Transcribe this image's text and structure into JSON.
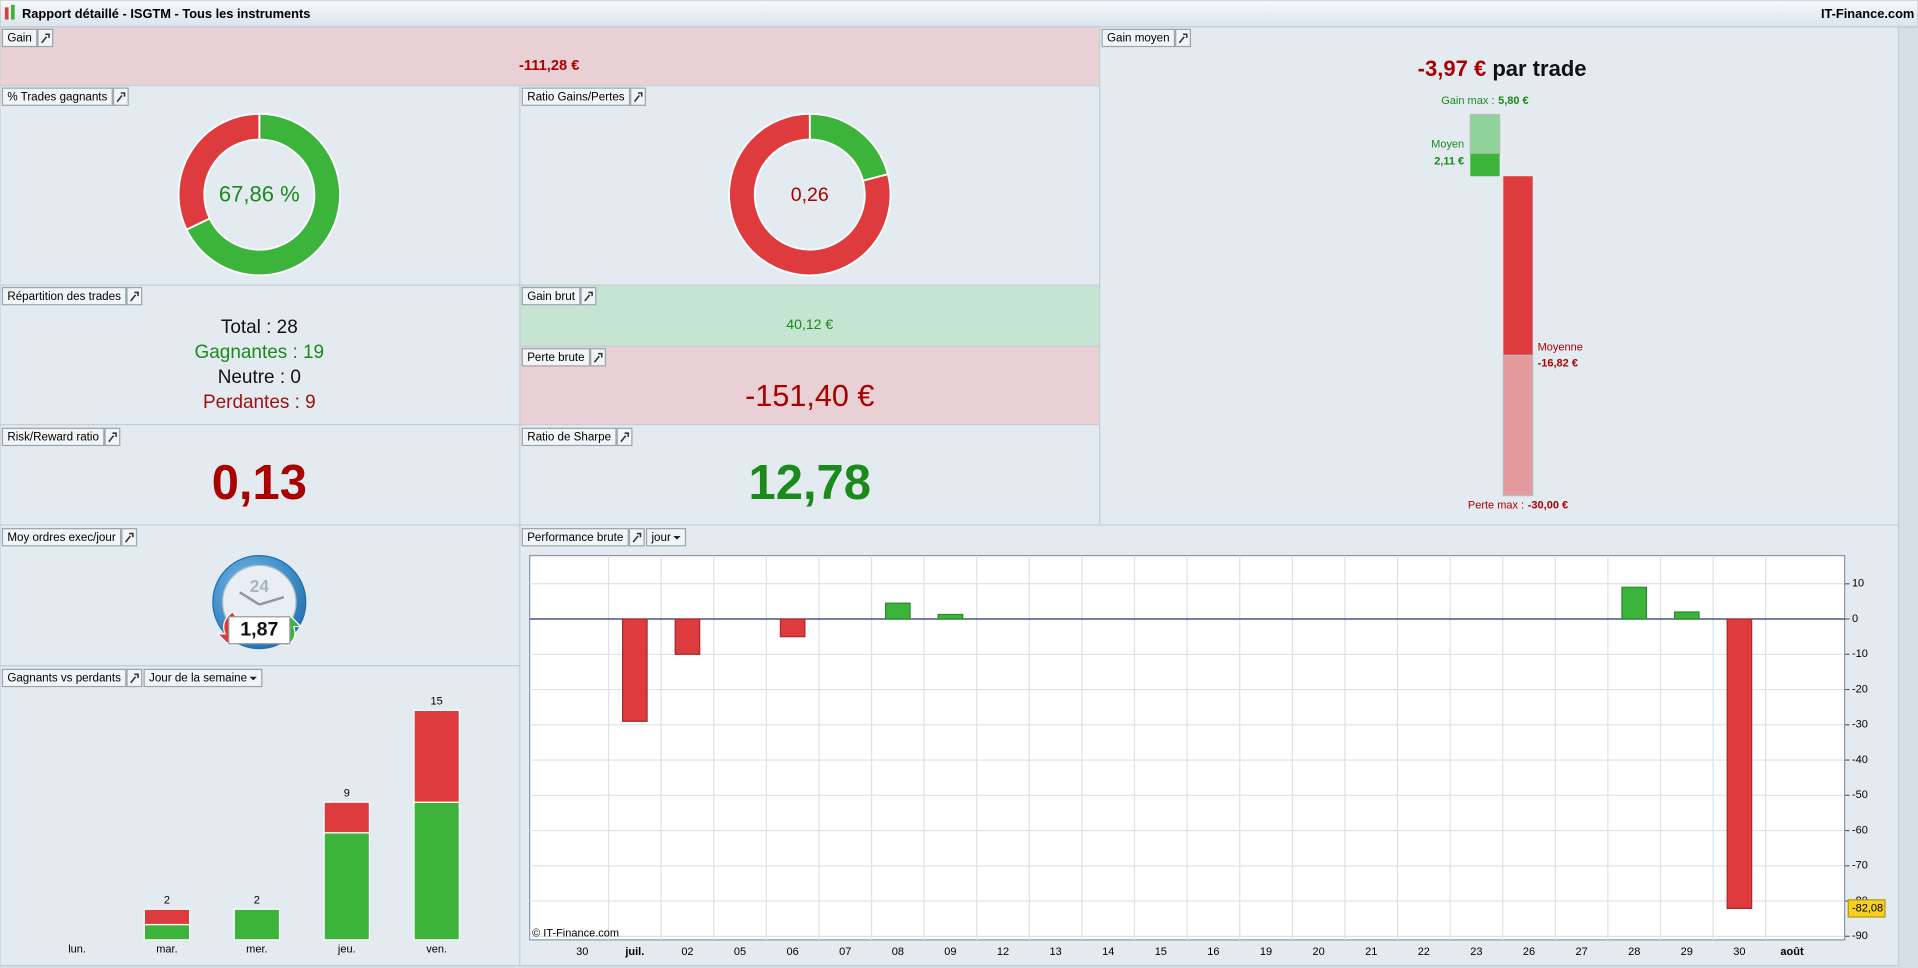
{
  "window": {
    "title": "Rapport détaillé - ISGTM - Tous les instruments",
    "brand": "IT-Finance.com"
  },
  "gain": {
    "label": "Gain",
    "value": "-111,28 €"
  },
  "trades_gagnants": {
    "label": "% Trades gagnants",
    "value": "67,86 %"
  },
  "ratio_gains_pertes": {
    "label": "Ratio Gains/Pertes",
    "value": "0,26"
  },
  "repartition": {
    "label": "Répartition des trades",
    "rows": [
      {
        "text": "Total : 28",
        "value": 28,
        "color": "#111111"
      },
      {
        "text": "Gagnantes : 19",
        "value": 19,
        "color": "#1a8a1a"
      },
      {
        "text": "Neutre : 0",
        "value": 0,
        "color": "#111111"
      },
      {
        "text": "Perdantes : 9",
        "value": 9,
        "color": "#a01010"
      }
    ]
  },
  "gain_brut": {
    "label": "Gain brut",
    "text": "40,12 €",
    "value": 40.12
  },
  "perte_brute": {
    "label": "Perte brute",
    "text": "-151,40 €",
    "value": -151.4
  },
  "risk_reward": {
    "label": "Risk/Reward ratio",
    "value": "0,13"
  },
  "sharpe": {
    "label": "Ratio de Sharpe",
    "value": "12,78"
  },
  "moy_ordres": {
    "label": "Moy ordres exec/jour",
    "value": "1,87",
    "dial": "24"
  },
  "gain_moyen": {
    "label": "Gain moyen",
    "value": "-3,97 €",
    "unit": "par trade",
    "gain_max": {
      "label": "Gain max :",
      "value": 5.8,
      "value_label": "5,80 €"
    },
    "moyen": {
      "label": "Moyen",
      "value": 2.11,
      "value_label": "2,11 €"
    },
    "moyenne": {
      "label": "Moyenne",
      "value": -16.82,
      "value_label": "-16,82 €"
    },
    "perte_max": {
      "label": "Perte max :",
      "value": -30.0,
      "value_label": "-30,00 €"
    }
  },
  "gagnants_vs_perdants": {
    "label": "Gagnants vs perdants",
    "dropdown": "Jour de la semaine",
    "chart_data": {
      "type": "stacked-bar",
      "categories": [
        "lun.",
        "mar.",
        "mer.",
        "jeu.",
        "ven."
      ],
      "series": [
        {
          "color": "#3cb43c",
          "values": [
            0,
            1,
            2,
            7,
            9
          ]
        },
        {
          "color": "#dd3b3e",
          "values": [
            0,
            1,
            0,
            2,
            6
          ]
        }
      ],
      "totals": [
        null,
        2,
        2,
        9,
        15
      ],
      "ylim": [
        0,
        16
      ]
    }
  },
  "performance_brute": {
    "label": "Performance brute",
    "dropdown": "jour",
    "credit": "© IT-Finance.com",
    "chart_data": {
      "type": "bar",
      "categories": [
        "30",
        "juil.",
        "02",
        "05",
        "06",
        "07",
        "08",
        "09",
        "12",
        "13",
        "14",
        "15",
        "16",
        "19",
        "20",
        "21",
        "22",
        "23",
        "26",
        "27",
        "28",
        "29",
        "30",
        "août"
      ],
      "values": [
        null,
        -29,
        -10,
        null,
        -5,
        null,
        4.5,
        1.3,
        null,
        null,
        null,
        null,
        null,
        null,
        null,
        null,
        null,
        null,
        null,
        null,
        9,
        2,
        -82.08,
        null
      ],
      "value_labels": [
        null,
        null,
        null,
        null,
        null,
        null,
        null,
        null,
        null,
        null,
        null,
        null,
        null,
        null,
        null,
        null,
        null,
        null,
        null,
        null,
        null,
        null,
        "-82,08",
        null
      ],
      "ylim": [
        -91,
        18
      ],
      "yticks": [
        10,
        0,
        -10,
        -20,
        -30,
        -40,
        -50,
        -60,
        -70,
        -80,
        -90
      ],
      "colors": {
        "positive": "#3cb43c",
        "negative": "#dd3b3e"
      },
      "grid": true
    }
  }
}
